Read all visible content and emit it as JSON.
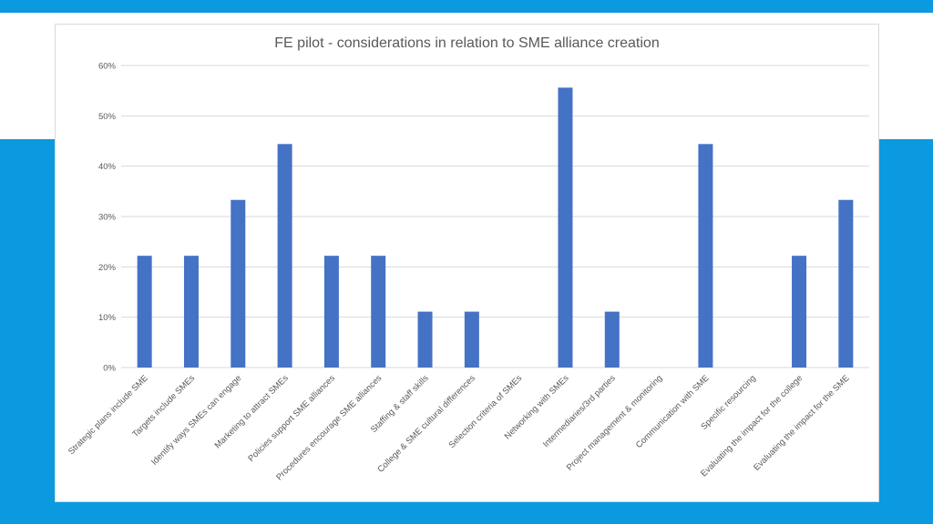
{
  "colors": {
    "accent_blue": "#0b9ae0",
    "bar_blue": "#4472c4",
    "grid": "#d9d9d9",
    "text": "#595959"
  },
  "chart_data": {
    "type": "bar",
    "title": "FE pilot - considerations in relation to SME alliance creation",
    "xlabel": "",
    "ylabel": "",
    "ylim": [
      0,
      0.6
    ],
    "yticks": [
      0,
      0.1,
      0.2,
      0.3,
      0.4,
      0.5,
      0.6
    ],
    "ytick_labels": [
      "0%",
      "10%",
      "20%",
      "30%",
      "40%",
      "50%",
      "60%"
    ],
    "grid": true,
    "legend": "none",
    "categories": [
      "Strategic plans include SME",
      "Targets include SMEs",
      "Identify ways SMEs can engage",
      "Marketing to attract SMEs",
      "Policies support SME alliances",
      "Procedures encourage SME alliances",
      "Staffing & staff skills",
      "College & SME cultural differences",
      "Selection criteria of SMEs",
      "Networking with SMEs",
      "Intermediaries/3rd parties",
      "Project management & monitoring",
      "Communication with SME",
      "Specific resourcing",
      "Evaluating the impact for the college",
      "Evaluating the impact for the SME"
    ],
    "values": [
      0.222,
      0.222,
      0.333,
      0.444,
      0.222,
      0.222,
      0.111,
      0.111,
      0,
      0.556,
      0.111,
      0,
      0.444,
      0,
      0.222,
      0.333
    ]
  }
}
